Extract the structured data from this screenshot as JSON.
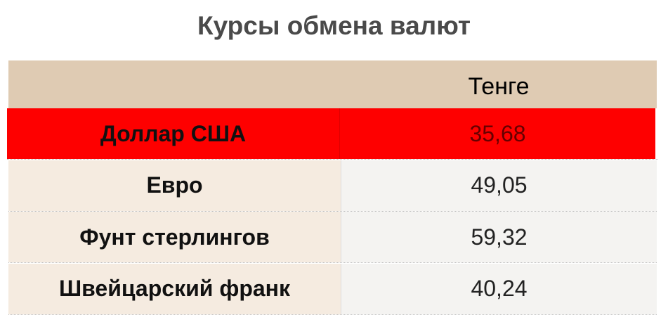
{
  "chart_data": {
    "type": "table",
    "title": "Курсы обмена валют",
    "columns": [
      "",
      "Тенге"
    ],
    "rows": [
      {
        "currency": "Доллар США",
        "value": "35,68",
        "highlighted": true
      },
      {
        "currency": "Евро",
        "value": "49,05",
        "highlighted": false
      },
      {
        "currency": "Фунт стерлингов",
        "value": "59,32",
        "highlighted": false
      },
      {
        "currency": "Швейцарский франк",
        "value": "40,24",
        "highlighted": false
      }
    ],
    "colors": {
      "header": "#dfcbb3",
      "highlight": "#fe0000",
      "label_cell": "#f5ebe0",
      "value_cell": "#f4f3f1"
    }
  }
}
